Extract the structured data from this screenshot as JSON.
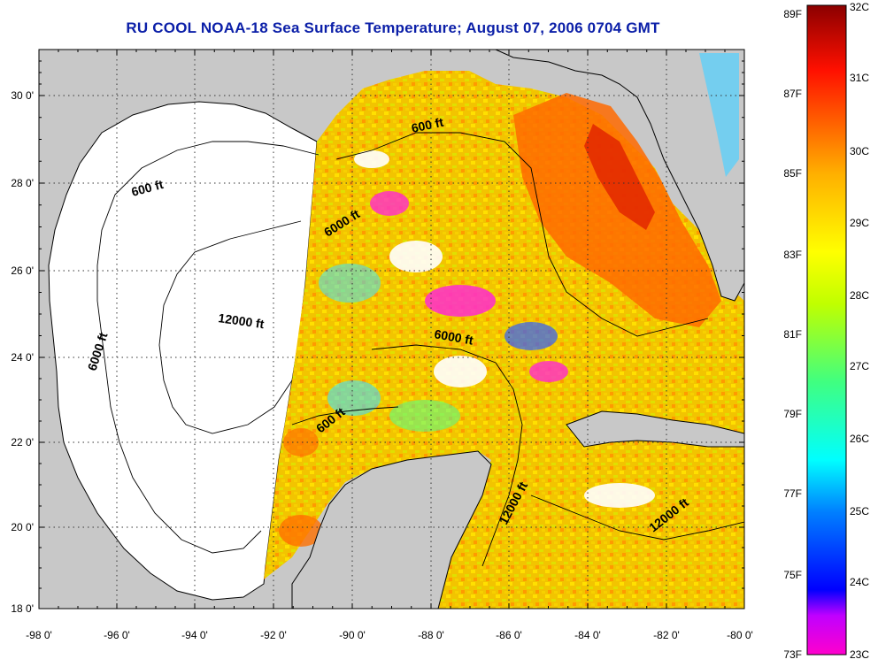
{
  "title": "RU COOL  NOAA-18  Sea Surface Temperature;  August 07, 2006 0704 GMT",
  "map": {
    "x_ticks": [
      "-98 0'",
      "-96 0'",
      "-94 0'",
      "-92 0'",
      "-90 0'",
      "-88 0'",
      "-86 0'",
      "-84 0'",
      "-82 0'",
      "-80 0'"
    ],
    "y_ticks": [
      "30 0'",
      "28 0'",
      "26 0'",
      "24 0'",
      "22 0'",
      "20 0'",
      "18 0'"
    ],
    "contour_labels": [
      "600 ft",
      "600 ft",
      "6000 ft",
      "6000 ft",
      "6000 ft",
      "12000 ft",
      "600 ft",
      "12000 ft",
      "12000 ft"
    ],
    "colors": {
      "land": "#c8c8c8",
      "no_data": "#ffffff",
      "grid": "#444444"
    }
  },
  "colorbar": {
    "fahrenheit": [
      "89F",
      "87F",
      "85F",
      "83F",
      "81F",
      "79F",
      "77F",
      "75F",
      "73F"
    ],
    "celsius": [
      "32C",
      "31C",
      "30C",
      "29C",
      "28C",
      "27C",
      "26C",
      "25C",
      "24C",
      "23C"
    ],
    "stops": [
      "#ff00cc",
      "#a000ff",
      "#0000ff",
      "#00a0ff",
      "#00ffff",
      "#40ff80",
      "#ffff00",
      "#ffa000",
      "#ff2000",
      "#8b0000"
    ]
  }
}
